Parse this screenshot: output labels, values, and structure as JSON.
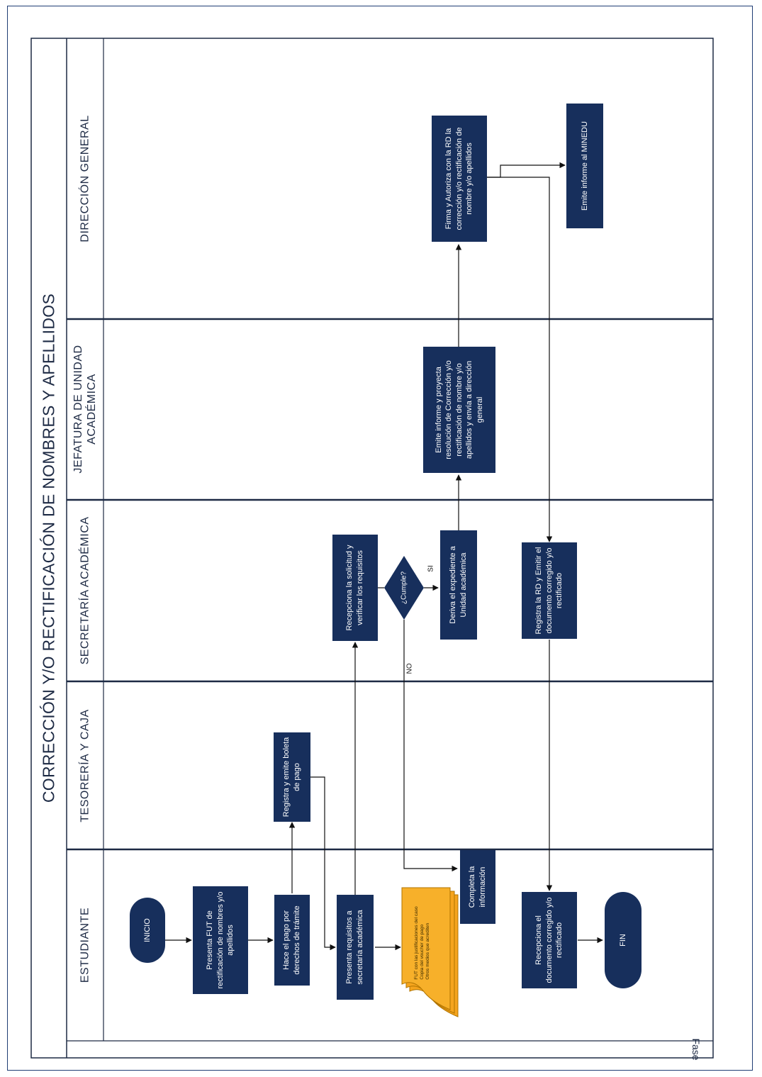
{
  "title": "CORRECCIÓN Y/O RECTIFICACIÓN DE NOMBRES Y APELLIDOS",
  "phase_label": "Fase",
  "lanes": [
    {
      "label": "ESTUDIANTE"
    },
    {
      "label": "TESORERÍA Y CAJA"
    },
    {
      "label": "SECRETARÍA ACADÉMICA"
    },
    {
      "label": "JEFATURA DE UNIDAD\nACADÉMICA"
    },
    {
      "label": "DIRECCIÓN GENERAL"
    }
  ],
  "nodes": {
    "inicio": "INICIO",
    "presenta_fut": "Presenta FUT de rectificación de nombres y/o apellidos",
    "hace_pago": "Hace el pago por derechos de trámite",
    "registra_boleta": "Registra y emite boleta de pago",
    "presenta_requisitos": "Presenta requisitos a secretaría académica",
    "documentos": "FUT con las justificaciones del caso\nCopia del voucher de pago\nOtros medios que acrediten",
    "completa_info": "Completa la información",
    "recepciona_solicitud": "Recepciona la solicitud y verificar los requisitos",
    "cumple": "¿Cumple?",
    "deriva_expediente": "Deriva el expediente a Unidad académica",
    "emite_informe_proyecta": "Emite informe y proyecta resolución de Corrección y/o rectificación de nombre y/o apellidos y envía a dirección general",
    "firma_autoriza": "Firma y Autoriza con la RD la corrección y/o rectificación de nombre y/o apellidos",
    "emite_informe_minedu": "Emite informe al MINEDU",
    "registra_rd": "Registra la RD y Emitir el documento corregido y/o rectificado",
    "recepciona_documento": "Recepciona el documento corregido y/o rectificado",
    "fin": "FIN"
  },
  "edge_labels": {
    "si": "SI",
    "no": "NO"
  },
  "colors": {
    "process_fill": "#172f5c",
    "document_fill": "#f5a41d",
    "lane_border": "#1d2a44",
    "text_dark": "#1d2a44",
    "connector": "#111111"
  }
}
